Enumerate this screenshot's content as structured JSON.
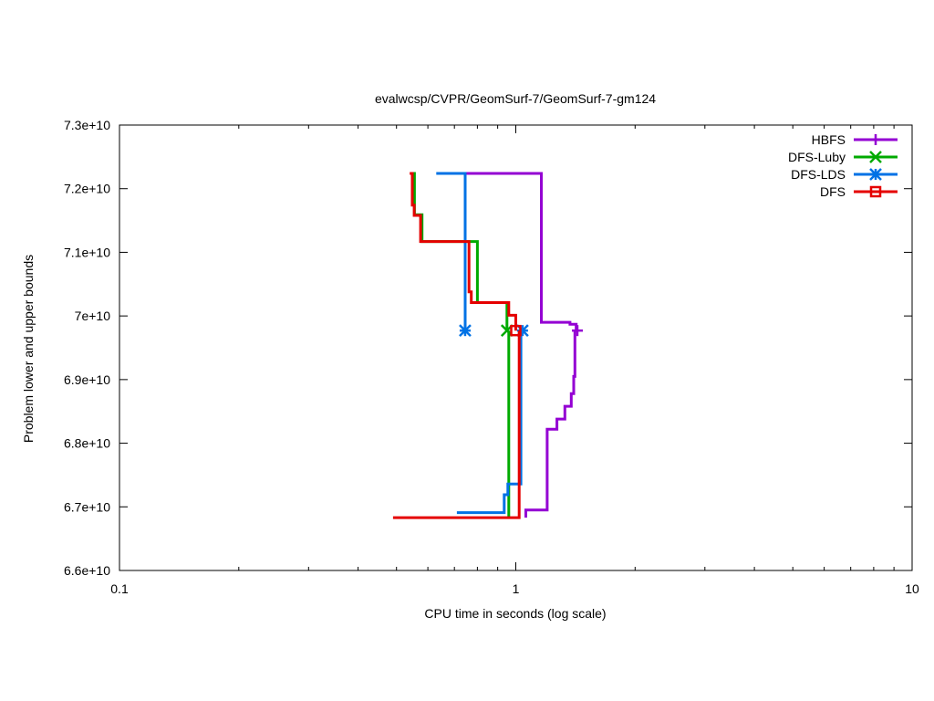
{
  "chart_data": {
    "type": "line",
    "title": "evalwcsp/CVPR/GeomSurf-7/GeomSurf-7-gm124",
    "xlabel": "CPU time in seconds (log scale)",
    "ylabel": "Problem lower and upper bounds",
    "x_scale": "log",
    "xlim": [
      0.1,
      10
    ],
    "ylim": [
      66000000000,
      73000000000
    ],
    "x_ticks": [
      0.1,
      1,
      10
    ],
    "x_tick_labels": [
      "0.1",
      "1",
      "10"
    ],
    "y_ticks": [
      66000000000,
      67000000000,
      68000000000,
      69000000000,
      70000000000,
      71000000000,
      72000000000,
      73000000000
    ],
    "y_tick_labels": [
      "6.6e+10",
      "6.7e+10",
      "6.8e+10",
      "6.9e+10",
      "7e+10",
      "7.1e+10",
      "7.2e+10",
      "7.3e+10"
    ],
    "grid": false,
    "legend_position": "top-right",
    "series": [
      {
        "name": "HBFS",
        "color": "#9400d3",
        "marker": "plus",
        "upper": [
          [
            0.75,
            72240000000
          ],
          [
            1.16,
            72240000000
          ],
          [
            1.16,
            69900000000
          ],
          [
            1.37,
            69900000000
          ],
          [
            1.37,
            69870000000
          ],
          [
            1.42,
            69870000000
          ],
          [
            1.42,
            69770000000
          ]
        ],
        "lower": [
          [
            1.06,
            66830000000
          ],
          [
            1.06,
            66950000000
          ],
          [
            1.2,
            66950000000
          ],
          [
            1.2,
            68220000000
          ],
          [
            1.27,
            68220000000
          ],
          [
            1.27,
            68380000000
          ],
          [
            1.33,
            68380000000
          ],
          [
            1.33,
            68580000000
          ],
          [
            1.38,
            68580000000
          ],
          [
            1.38,
            68780000000
          ],
          [
            1.4,
            68780000000
          ],
          [
            1.4,
            69050000000
          ],
          [
            1.41,
            69050000000
          ],
          [
            1.41,
            69770000000
          ]
        ],
        "marker_points": [
          [
            1.43,
            69770000000
          ]
        ]
      },
      {
        "name": "DFS-Luby",
        "color": "#00aa00",
        "marker": "x",
        "upper": [
          [
            0.545,
            72240000000
          ],
          [
            0.555,
            72240000000
          ],
          [
            0.555,
            71590000000
          ],
          [
            0.58,
            71590000000
          ],
          [
            0.58,
            71170000000
          ],
          [
            0.8,
            71170000000
          ],
          [
            0.8,
            70210000000
          ],
          [
            0.95,
            70210000000
          ],
          [
            0.95,
            69770000000
          ]
        ],
        "lower": [
          [
            0.96,
            66830000000
          ],
          [
            0.96,
            69770000000
          ]
        ],
        "marker_points": [
          [
            0.95,
            69770000000
          ]
        ]
      },
      {
        "name": "DFS-LDS",
        "color": "#0072e5",
        "marker": "star",
        "upper": [
          [
            0.63,
            72240000000
          ],
          [
            0.745,
            72240000000
          ],
          [
            0.745,
            69770000000
          ]
        ],
        "lower": [
          [
            0.71,
            66910000000
          ],
          [
            0.935,
            66910000000
          ],
          [
            0.935,
            67190000000
          ],
          [
            0.955,
            67190000000
          ],
          [
            0.955,
            67360000000
          ],
          [
            1.03,
            67360000000
          ],
          [
            1.03,
            69770000000
          ]
        ],
        "marker_points": [
          [
            0.745,
            69770000000
          ],
          [
            1.04,
            69770000000
          ]
        ]
      },
      {
        "name": "DFS",
        "color": "#e50000",
        "marker": "square",
        "upper": [
          [
            0.54,
            72240000000
          ],
          [
            0.548,
            72240000000
          ],
          [
            0.548,
            71740000000
          ],
          [
            0.554,
            71740000000
          ],
          [
            0.554,
            71580000000
          ],
          [
            0.575,
            71580000000
          ],
          [
            0.575,
            71170000000
          ],
          [
            0.762,
            71170000000
          ],
          [
            0.762,
            70380000000
          ],
          [
            0.772,
            70380000000
          ],
          [
            0.772,
            70210000000
          ],
          [
            0.96,
            70210000000
          ],
          [
            0.96,
            70010000000
          ],
          [
            1.0,
            70010000000
          ],
          [
            1.0,
            69770000000
          ]
        ],
        "lower": [
          [
            0.49,
            66830000000
          ],
          [
            1.02,
            66830000000
          ],
          [
            1.02,
            69770000000
          ]
        ],
        "marker_points": [
          [
            1.0,
            69770000000
          ]
        ]
      }
    ]
  }
}
